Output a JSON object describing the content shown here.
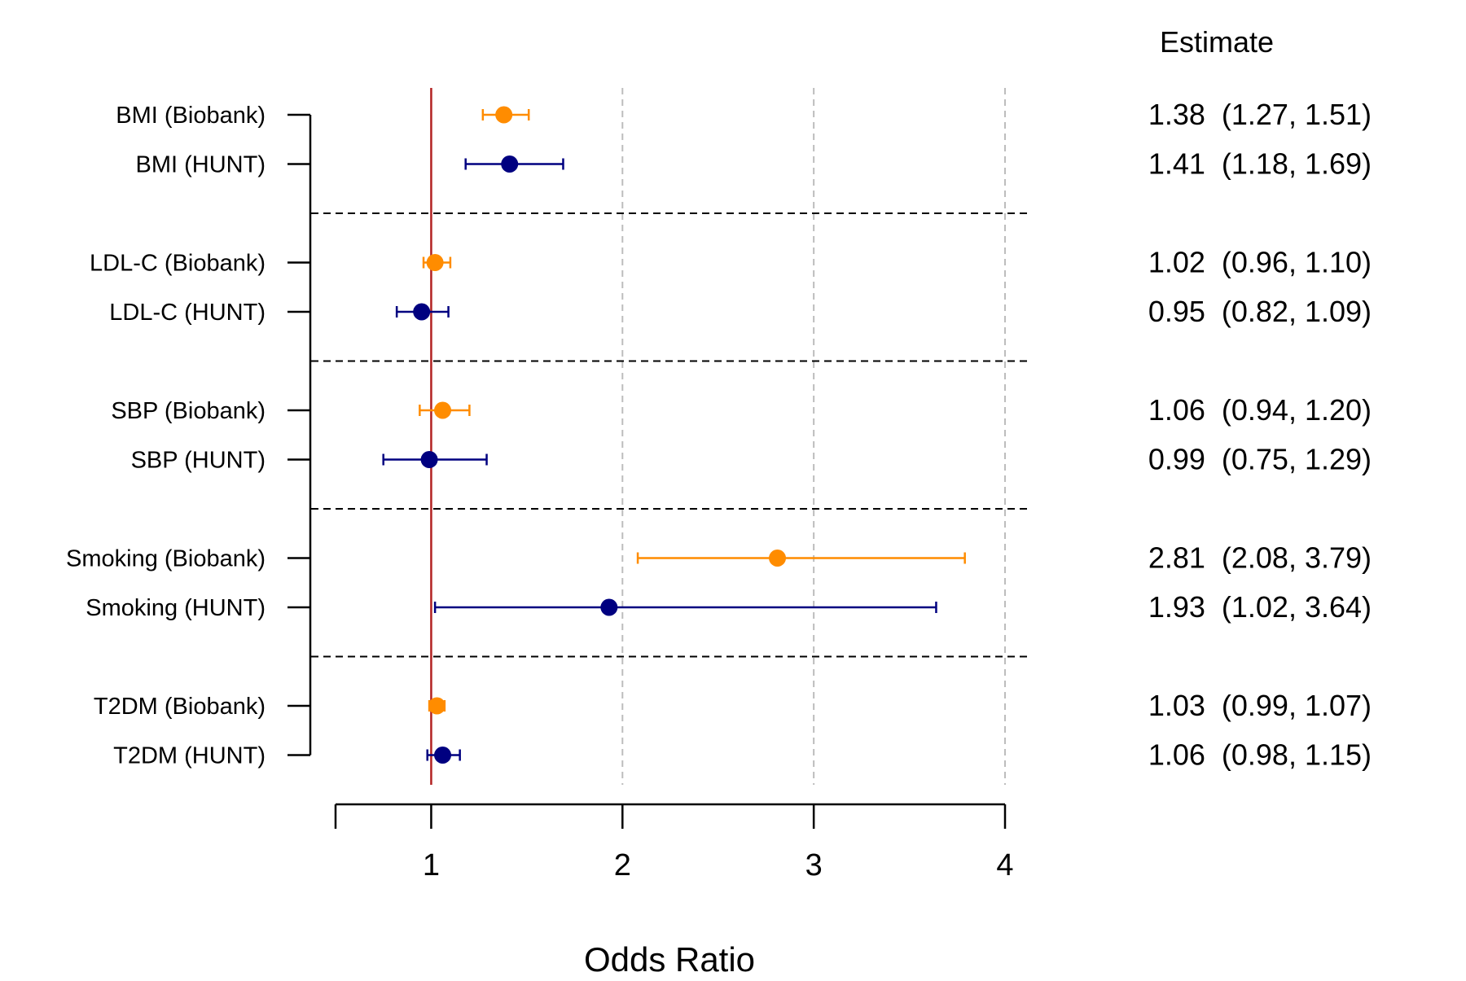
{
  "chart_data": {
    "type": "forest",
    "xlabel": "Odds Ratio",
    "estimate_header": "Estimate",
    "xlim": [
      0.5,
      4
    ],
    "xticks": [
      1,
      2,
      3,
      4
    ],
    "xtick_labels": [
      "1",
      "2",
      "3",
      "4"
    ],
    "reference_line": 1,
    "reference_color": "#b22222",
    "grid": "dashed vertical lines at x = 2, 3, 4",
    "colors": {
      "Biobank": "#ff8c00",
      "HUNT": "#000080"
    },
    "groups": [
      "BMI",
      "LDL-C",
      "SBP",
      "Smoking",
      "T2DM"
    ],
    "rows": [
      {
        "label": "BMI (Biobank)",
        "cohort": "Biobank",
        "estimate": 1.38,
        "lower": 1.27,
        "upper": 1.51,
        "text": "1.38  (1.27, 1.51)"
      },
      {
        "label": "BMI (HUNT)",
        "cohort": "HUNT",
        "estimate": 1.41,
        "lower": 1.18,
        "upper": 1.69,
        "text": "1.41  (1.18, 1.69)"
      },
      {
        "label": "LDL-C (Biobank)",
        "cohort": "Biobank",
        "estimate": 1.02,
        "lower": 0.96,
        "upper": 1.1,
        "text": "1.02  (0.96, 1.10)"
      },
      {
        "label": "LDL-C (HUNT)",
        "cohort": "HUNT",
        "estimate": 0.95,
        "lower": 0.82,
        "upper": 1.09,
        "text": "0.95  (0.82, 1.09)"
      },
      {
        "label": "SBP (Biobank)",
        "cohort": "Biobank",
        "estimate": 1.06,
        "lower": 0.94,
        "upper": 1.2,
        "text": "1.06  (0.94, 1.20)"
      },
      {
        "label": "SBP (HUNT)",
        "cohort": "HUNT",
        "estimate": 0.99,
        "lower": 0.75,
        "upper": 1.29,
        "text": "0.99  (0.75, 1.29)"
      },
      {
        "label": "Smoking (Biobank)",
        "cohort": "Biobank",
        "estimate": 2.81,
        "lower": 2.08,
        "upper": 3.79,
        "text": "2.81  (2.08, 3.79)"
      },
      {
        "label": "Smoking (HUNT)",
        "cohort": "HUNT",
        "estimate": 1.93,
        "lower": 1.02,
        "upper": 3.64,
        "text": "1.93  (1.02, 3.64)"
      },
      {
        "label": "T2DM (Biobank)",
        "cohort": "Biobank",
        "estimate": 1.03,
        "lower": 0.99,
        "upper": 1.07,
        "text": "1.03  (0.99, 1.07)"
      },
      {
        "label": "T2DM (HUNT)",
        "cohort": "HUNT",
        "estimate": 1.06,
        "lower": 0.98,
        "upper": 1.15,
        "text": "1.06  (0.98, 1.15)"
      }
    ]
  }
}
